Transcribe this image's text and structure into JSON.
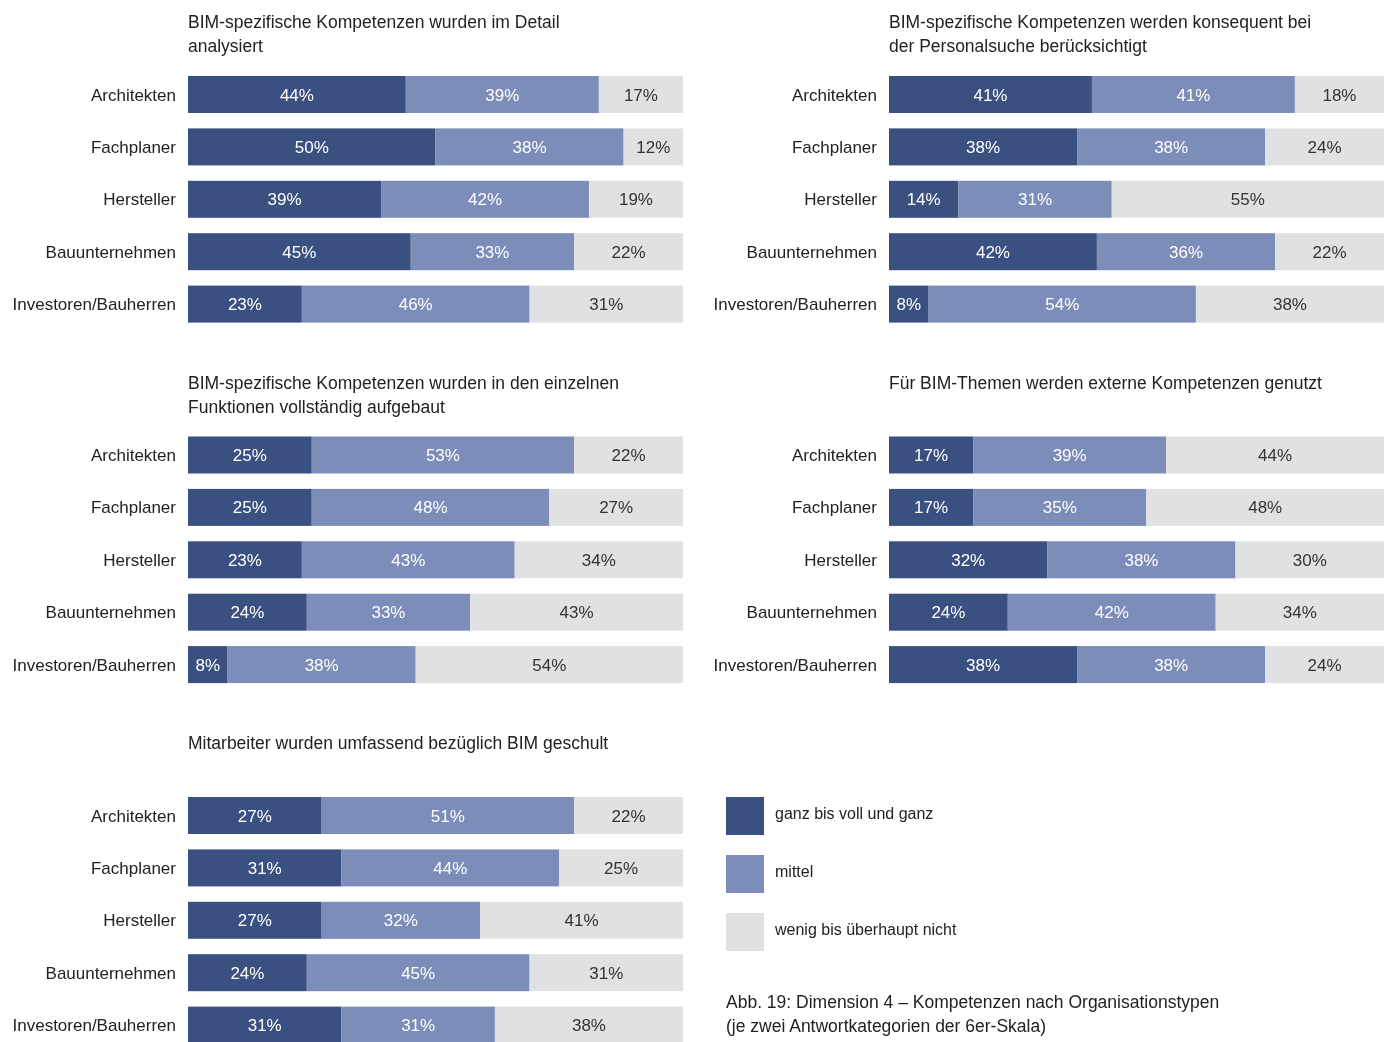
{
  "chart_data": [
    {
      "type": "bar",
      "orientation": "horizontal",
      "stacked": true,
      "title": "BIM-spezifische Kompetenzen wurden im Detail analysiert",
      "categories": [
        "Architekten",
        "Fachplaner",
        "Hersteller",
        "Bauunternehmen",
        "Investoren/Bauherren"
      ],
      "xlim": [
        0,
        100
      ],
      "tick_labels": "y",
      "legend": false,
      "series": [
        {
          "color": "#3a5080",
          "values": [
            44,
            50,
            39,
            45,
            23
          ],
          "value_labels": [
            "44%",
            "50%",
            "39%",
            "45%",
            "23%"
          ]
        },
        {
          "color": "#7b8db8",
          "values": [
            39,
            38,
            42,
            33,
            46
          ],
          "value_labels": [
            "39%",
            "38%",
            "42%",
            "33%",
            "46%"
          ]
        },
        {
          "color": "#e0e1e3",
          "values": [
            17,
            12,
            19,
            22,
            31
          ],
          "value_labels": [
            "17%",
            "12%",
            "19%",
            "22%",
            "31%"
          ]
        }
      ]
    },
    {
      "type": "bar",
      "orientation": "horizontal",
      "stacked": true,
      "title": "BIM-spezifische Kompetenzen werden konsequent bei der Personalsuche berücksichtigt",
      "categories": [
        "Architekten",
        "Fachplaner",
        "Hersteller",
        "Bauunternehmen",
        "Investoren/Bauherren"
      ],
      "xlim": [
        0,
        100
      ],
      "tick_labels": "y",
      "legend": false,
      "series": [
        {
          "color": "#3a5080",
          "values": [
            41,
            38,
            14,
            42,
            8
          ],
          "value_labels": [
            "41%",
            "38%",
            "14%",
            "42%",
            "8%"
          ]
        },
        {
          "color": "#7b8db8",
          "values": [
            41,
            38,
            31,
            36,
            54
          ],
          "value_labels": [
            "41%",
            "38%",
            "31%",
            "36%",
            "54%"
          ]
        },
        {
          "color": "#e0e1e3",
          "values": [
            18,
            24,
            55,
            22,
            38
          ],
          "value_labels": [
            "18%",
            "24%",
            "55%",
            "22%",
            "38%"
          ]
        }
      ]
    },
    {
      "type": "bar",
      "orientation": "horizontal",
      "stacked": true,
      "title": "BIM-spezifische Kompetenzen wurden in den einzelnen Funktionen vollständig aufgebaut",
      "categories": [
        "Architekten",
        "Fachplaner",
        "Hersteller",
        "Bauunternehmen",
        "Investoren/Bauherren"
      ],
      "xlim": [
        0,
        100
      ],
      "tick_labels": "y",
      "legend": false,
      "series": [
        {
          "color": "#3a5080",
          "values": [
            25,
            25,
            23,
            24,
            8
          ],
          "value_labels": [
            "25%",
            "25%",
            "23%",
            "24%",
            "8%"
          ]
        },
        {
          "color": "#7b8db8",
          "values": [
            53,
            48,
            43,
            33,
            38
          ],
          "value_labels": [
            "53%",
            "48%",
            "43%",
            "33%",
            "38%"
          ]
        },
        {
          "color": "#e0e1e3",
          "values": [
            22,
            27,
            34,
            43,
            54
          ],
          "value_labels": [
            "22%",
            "27%",
            "34%",
            "43%",
            "54%"
          ]
        }
      ]
    },
    {
      "type": "bar",
      "orientation": "horizontal",
      "stacked": true,
      "title": "Für BIM-Themen werden externe Kompetenzen genutzt",
      "categories": [
        "Architekten",
        "Fachplaner",
        "Hersteller",
        "Bauunternehmen",
        "Investoren/Bauherren"
      ],
      "xlim": [
        0,
        100
      ],
      "tick_labels": "y",
      "legend": false,
      "series": [
        {
          "color": "#3a5080",
          "values": [
            17,
            17,
            32,
            24,
            38
          ],
          "value_labels": [
            "17%",
            "17%",
            "32%",
            "24%",
            "38%"
          ]
        },
        {
          "color": "#7b8db8",
          "values": [
            39,
            35,
            38,
            42,
            38
          ],
          "value_labels": [
            "39%",
            "35%",
            "38%",
            "42%",
            "38%"
          ]
        },
        {
          "color": "#e0e1e3",
          "values": [
            44,
            48,
            30,
            34,
            24
          ],
          "value_labels": [
            "44%",
            "48%",
            "30%",
            "34%",
            "24%"
          ]
        }
      ]
    },
    {
      "type": "bar",
      "orientation": "horizontal",
      "stacked": true,
      "title": "Mitarbeiter wurden umfassend bezüglich BIM geschult",
      "categories": [
        "Architekten",
        "Fachplaner",
        "Hersteller",
        "Bauunternehmen",
        "Investoren/Bauherren"
      ],
      "xlim": [
        0,
        100
      ],
      "tick_labels": "y",
      "legend": "right",
      "annotations": [
        "Abb. 19: Dimension 4 – Kompetenzen nach Organisationstypen",
        "(je zwei Antwortkategorien der 6er-Skala)"
      ],
      "series": [
        {
          "name": "ganz bis voll und ganz",
          "color": "#3a5080",
          "values": [
            27,
            31,
            27,
            24,
            31
          ],
          "value_labels": [
            "27%",
            "31%",
            "27%",
            "24%",
            "31%"
          ]
        },
        {
          "name": "mittel",
          "color": "#7b8db8",
          "values": [
            51,
            44,
            32,
            45,
            31
          ],
          "value_labels": [
            "51%",
            "44%",
            "32%",
            "45%",
            "31%"
          ]
        },
        {
          "name": "wenig bis überhaupt nicht",
          "color": "#e0e1e3",
          "values": [
            22,
            25,
            41,
            31,
            38
          ],
          "value_labels": [
            "22%",
            "25%",
            "41%",
            "31%",
            "38%"
          ]
        }
      ]
    }
  ]
}
